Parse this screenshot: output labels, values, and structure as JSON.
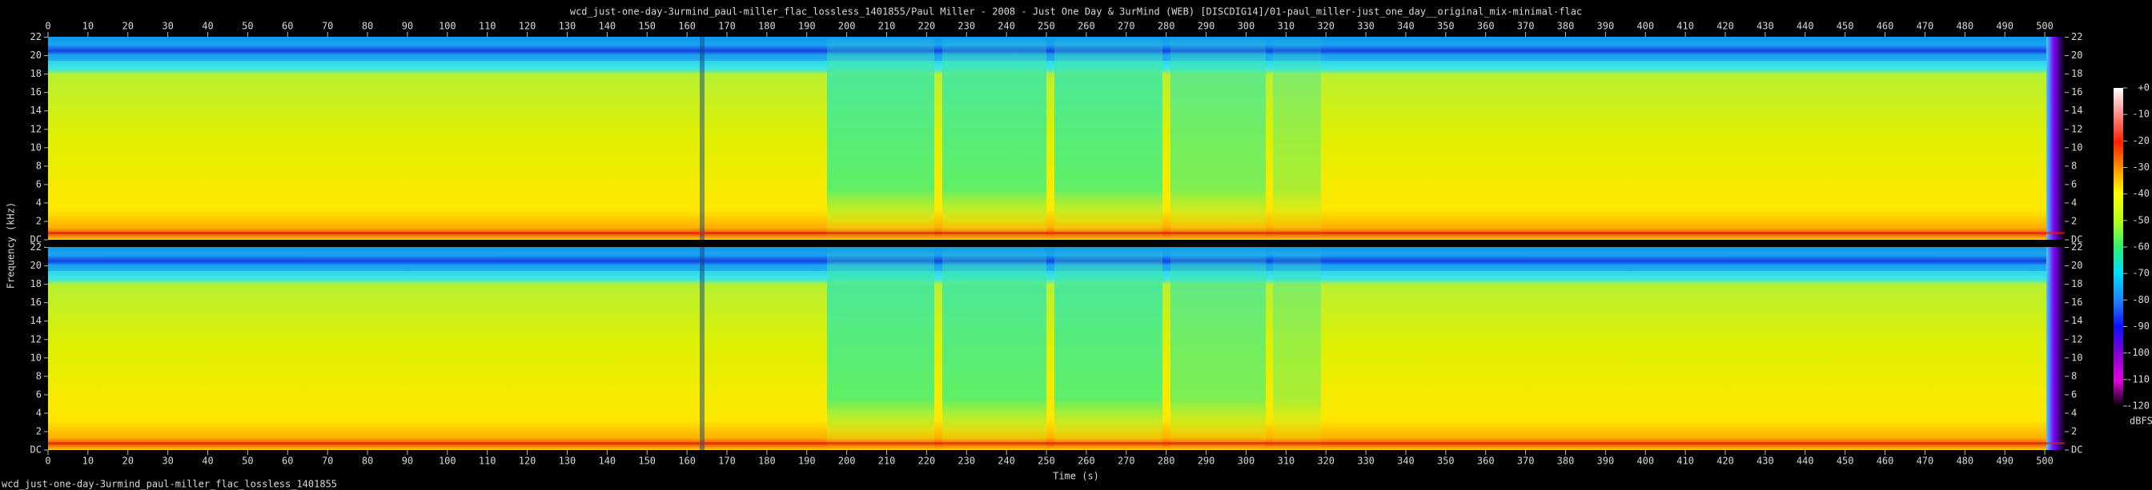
{
  "chart_data": {
    "type": "spectrogram",
    "title": "wcd_just-one-day-3urmind_paul-miller_flac_lossless_1401855/Paul Miller - 2008 - Just One Day & 3urMind (WEB) [DISCDIG14]/01-paul_miller-just_one_day__original_mix-minimal-flac",
    "footer": "wcd_just-one-day-3urmind_paul-miller_flac_lossless_1401855",
    "xlabel": "Time (s)",
    "ylabel": "Frequency (kHz)",
    "xlim": [
      0,
      505
    ],
    "xticks": [
      0,
      10,
      20,
      30,
      40,
      50,
      60,
      70,
      80,
      90,
      100,
      110,
      120,
      130,
      140,
      150,
      160,
      170,
      180,
      190,
      200,
      210,
      220,
      230,
      240,
      250,
      260,
      270,
      280,
      290,
      300,
      310,
      320,
      330,
      340,
      350,
      360,
      370,
      380,
      390,
      400,
      410,
      420,
      430,
      440,
      450,
      460,
      470,
      480,
      490,
      500
    ],
    "ylim": [
      0,
      22.05
    ],
    "yticks": [
      {
        "value": 0,
        "label": "DC"
      },
      2,
      4,
      6,
      8,
      10,
      12,
      14,
      16,
      18,
      20,
      22
    ],
    "colorbar": {
      "label": "dBFS",
      "lim": [
        -120,
        0
      ],
      "ticks": [
        {
          "value": 0,
          "label": "+0"
        },
        -10,
        -20,
        -30,
        -40,
        -50,
        -60,
        -70,
        -80,
        -90,
        -100,
        -110,
        -120
      ]
    }
  }
}
